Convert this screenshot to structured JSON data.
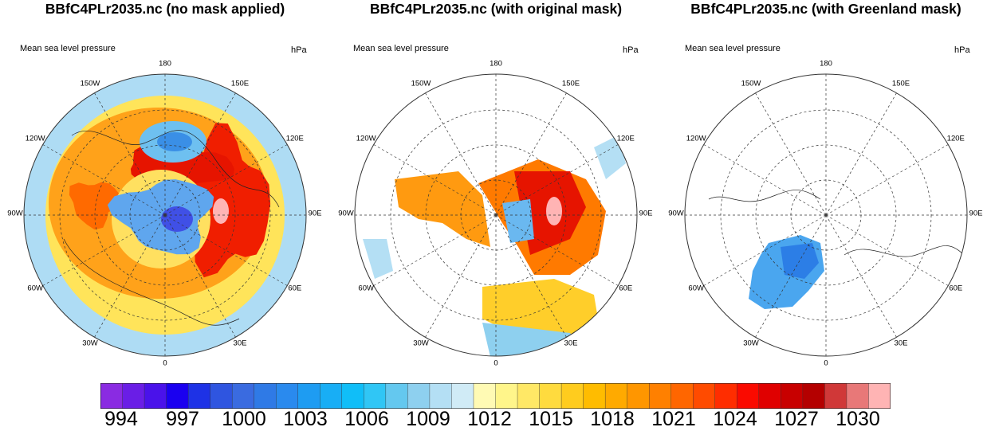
{
  "panels": [
    {
      "title": "BBfC4PLr2035.nc (no mask applied)",
      "left_label": "Mean sea level pressure",
      "units": "hPa",
      "mask": "none"
    },
    {
      "title": "BBfC4PLr2035.nc (with original mask)",
      "left_label": "Mean sea level pressure",
      "units": "hPa",
      "mask": "land"
    },
    {
      "title": "BBfC4PLr2035.nc (with Greenland mask)",
      "left_label": "Mean sea level pressure",
      "units": "hPa",
      "mask": "greenland"
    }
  ],
  "longitude_labels": [
    "180",
    "150E",
    "120E",
    "90E",
    "60E",
    "30E",
    "0",
    "30W",
    "60W",
    "90W",
    "120W",
    "150W"
  ],
  "colorbar": {
    "labels": [
      "994",
      "997",
      "1000",
      "1003",
      "1006",
      "1009",
      "1012",
      "1015",
      "1018",
      "1021",
      "1024",
      "1027",
      "1030"
    ],
    "colors": [
      "#8a2be2",
      "#6a1ee6",
      "#4a12ea",
      "#1a00f0",
      "#1e32e6",
      "#2f55e0",
      "#3a6be0",
      "#2f7ae6",
      "#2a8aee",
      "#1e9cf2",
      "#18aef5",
      "#10bef8",
      "#30c6f5",
      "#64c8ef",
      "#8ed0ef",
      "#b4dff4",
      "#d0ebf6",
      "#fffab4",
      "#fff58a",
      "#ffe866",
      "#ffdb3e",
      "#ffcc1e",
      "#ffbc00",
      "#ffaa00",
      "#ff9600",
      "#ff8000",
      "#ff6600",
      "#ff4b00",
      "#ff2d00",
      "#fa0a00",
      "#e00000",
      "#c80000",
      "#b40000",
      "#d03838",
      "#e87878",
      "#ffb4b4"
    ]
  }
}
